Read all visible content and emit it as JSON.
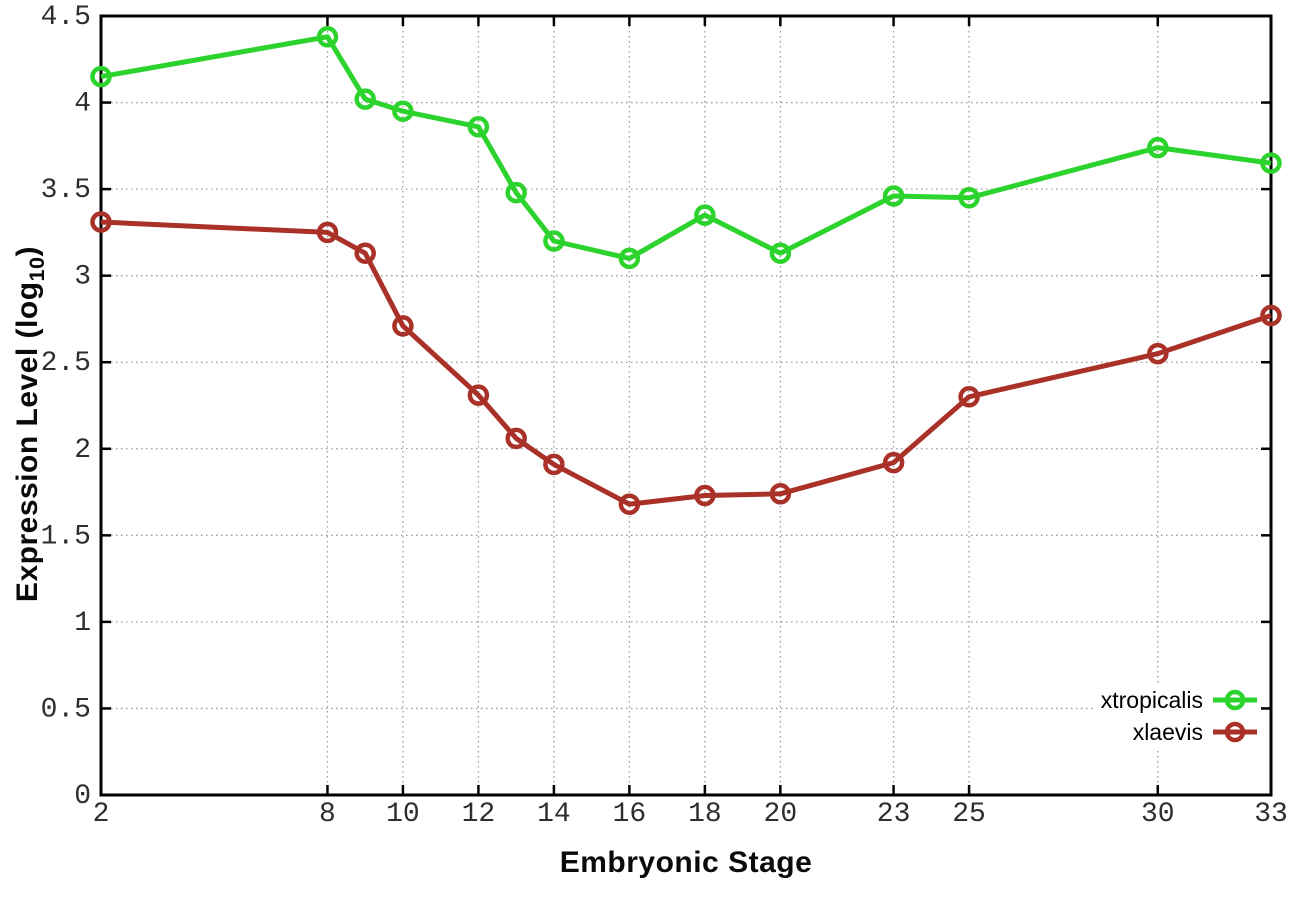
{
  "chart_data": {
    "type": "line",
    "xlabel": "Embryonic Stage",
    "ylabel": "Expression Level (log10)",
    "ylabel_parts": {
      "prefix": "Expression Level (log",
      "sub": "10",
      "suffix": ")"
    },
    "x": [
      2,
      8,
      9,
      10,
      12,
      13,
      14,
      16,
      18,
      20,
      23,
      25,
      30,
      33
    ],
    "series": [
      {
        "name": "xtropicalis",
        "color": "#2cd32c",
        "values": [
          4.15,
          4.38,
          4.02,
          3.95,
          3.86,
          3.48,
          3.2,
          3.1,
          3.35,
          3.13,
          3.46,
          3.45,
          3.74,
          3.65
        ]
      },
      {
        "name": "xlaevis",
        "color": "#a93127",
        "values": [
          3.31,
          3.25,
          3.13,
          2.71,
          2.31,
          2.06,
          1.91,
          1.68,
          1.73,
          1.74,
          1.92,
          2.3,
          2.55,
          2.77
        ]
      }
    ],
    "x_ticks": [
      2,
      8,
      10,
      12,
      14,
      16,
      18,
      20,
      23,
      25,
      30,
      33
    ],
    "y_ticks": [
      0,
      0.5,
      1,
      1.5,
      2,
      2.5,
      3,
      3.5,
      4,
      4.5
    ],
    "xlim": [
      2,
      33
    ],
    "ylim": [
      0,
      4.5
    ],
    "grid": true,
    "legend_position": "bottom-right",
    "marker": "open-circle"
  },
  "styles": {
    "background": "#ffffff",
    "axis_color": "#000000",
    "grid_color": "#9b9b9b",
    "tick_label_color": "#2e2e2e"
  }
}
